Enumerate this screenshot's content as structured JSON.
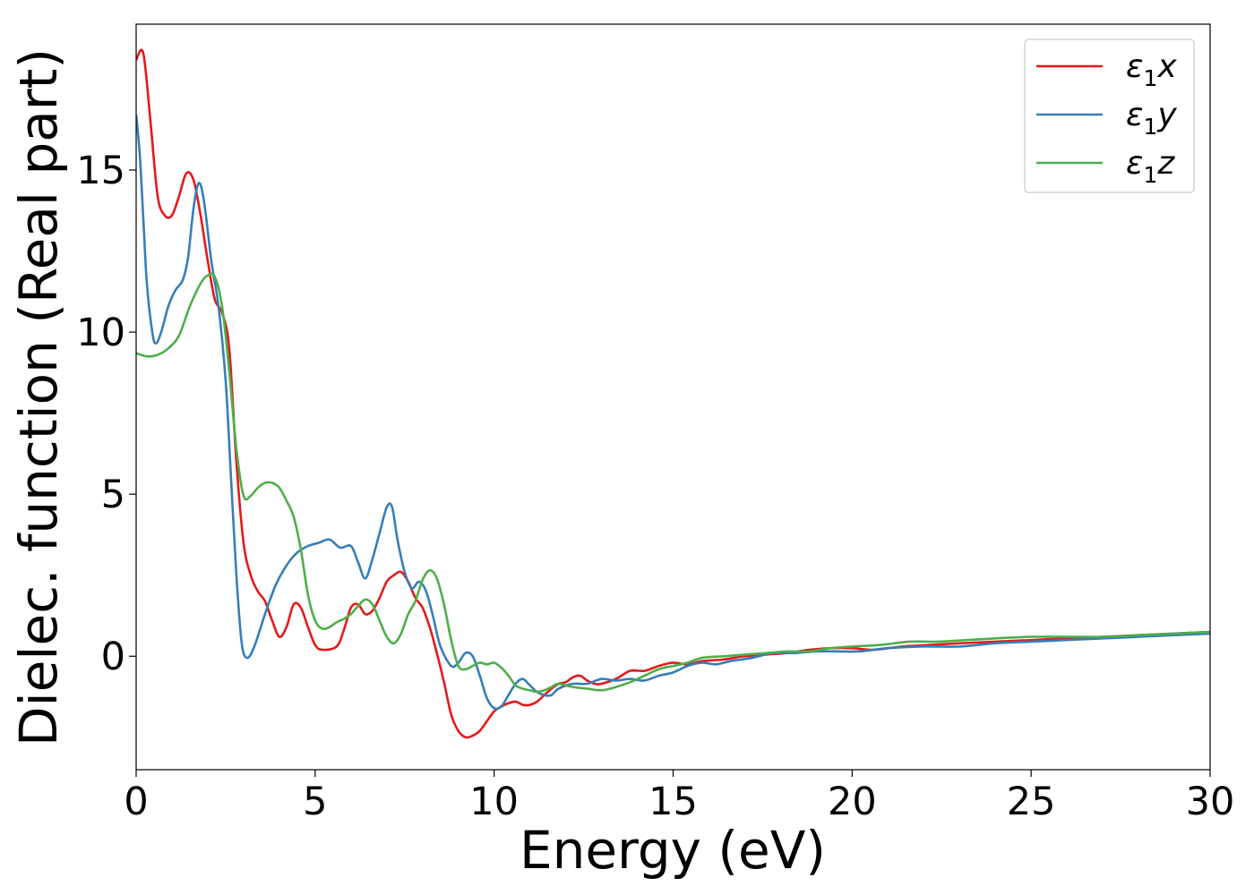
{
  "chart_data": {
    "type": "line",
    "title": "",
    "xlabel": "Energy (eV)",
    "ylabel": "Dielec. function (Real part)",
    "xlim": [
      0,
      30
    ],
    "ylim": [
      -3.5,
      19.5
    ],
    "xticks": [
      0,
      5,
      10,
      15,
      20,
      25,
      30
    ],
    "yticks": [
      0,
      5,
      10,
      15
    ],
    "grid": false,
    "legend_position": "top-right",
    "series": [
      {
        "name": "ε₁x",
        "legend_main": "ε",
        "legend_sub": "1",
        "legend_tail": "x",
        "color": "#e41a1c",
        "points": [
          [
            0,
            18.4
          ],
          [
            0.2,
            18.6
          ],
          [
            0.4,
            16.5
          ],
          [
            0.6,
            14.2
          ],
          [
            0.8,
            13.6
          ],
          [
            1.0,
            13.6
          ],
          [
            1.2,
            14.2
          ],
          [
            1.4,
            14.9
          ],
          [
            1.6,
            14.7
          ],
          [
            1.8,
            13.6
          ],
          [
            2.0,
            12.2
          ],
          [
            2.2,
            11.0
          ],
          [
            2.4,
            10.6
          ],
          [
            2.6,
            9.5
          ],
          [
            2.8,
            6.0
          ],
          [
            3.0,
            3.5
          ],
          [
            3.2,
            2.5
          ],
          [
            3.4,
            2.0
          ],
          [
            3.6,
            1.7
          ],
          [
            3.8,
            1.1
          ],
          [
            4.0,
            0.6
          ],
          [
            4.2,
            0.9
          ],
          [
            4.4,
            1.6
          ],
          [
            4.6,
            1.5
          ],
          [
            4.8,
            0.9
          ],
          [
            5.0,
            0.35
          ],
          [
            5.2,
            0.2
          ],
          [
            5.6,
            0.3
          ],
          [
            5.8,
            0.8
          ],
          [
            6.0,
            1.5
          ],
          [
            6.2,
            1.6
          ],
          [
            6.4,
            1.3
          ],
          [
            6.6,
            1.4
          ],
          [
            6.8,
            1.8
          ],
          [
            7.0,
            2.3
          ],
          [
            7.2,
            2.5
          ],
          [
            7.4,
            2.6
          ],
          [
            7.6,
            2.3
          ],
          [
            7.8,
            1.8
          ],
          [
            8.0,
            1.5
          ],
          [
            8.2,
            0.9
          ],
          [
            8.4,
            0.1
          ],
          [
            8.6,
            -0.8
          ],
          [
            8.8,
            -1.8
          ],
          [
            9.0,
            -2.3
          ],
          [
            9.2,
            -2.5
          ],
          [
            9.4,
            -2.45
          ],
          [
            9.6,
            -2.3
          ],
          [
            9.8,
            -2.0
          ],
          [
            10.0,
            -1.7
          ],
          [
            10.2,
            -1.55
          ],
          [
            10.4,
            -1.45
          ],
          [
            10.6,
            -1.4
          ],
          [
            10.8,
            -1.5
          ],
          [
            11.0,
            -1.5
          ],
          [
            11.2,
            -1.4
          ],
          [
            11.4,
            -1.2
          ],
          [
            11.6,
            -1.0
          ],
          [
            11.8,
            -0.85
          ],
          [
            12.0,
            -0.8
          ],
          [
            12.2,
            -0.65
          ],
          [
            12.4,
            -0.6
          ],
          [
            12.6,
            -0.75
          ],
          [
            12.8,
            -0.85
          ],
          [
            13.0,
            -0.85
          ],
          [
            13.4,
            -0.7
          ],
          [
            13.8,
            -0.45
          ],
          [
            14.2,
            -0.45
          ],
          [
            14.6,
            -0.3
          ],
          [
            15.0,
            -0.2
          ],
          [
            15.4,
            -0.25
          ],
          [
            15.8,
            -0.15
          ],
          [
            16.4,
            -0.1
          ],
          [
            17.0,
            0.0
          ],
          [
            17.6,
            0.05
          ],
          [
            18.2,
            0.1
          ],
          [
            18.8,
            0.2
          ],
          [
            19.4,
            0.25
          ],
          [
            20.0,
            0.25
          ],
          [
            20.6,
            0.2
          ],
          [
            21.4,
            0.3
          ],
          [
            22.2,
            0.35
          ],
          [
            23.0,
            0.4
          ],
          [
            24.0,
            0.45
          ],
          [
            25.0,
            0.5
          ],
          [
            26.0,
            0.55
          ],
          [
            27.0,
            0.6
          ],
          [
            28.0,
            0.65
          ],
          [
            29.0,
            0.7
          ],
          [
            30.0,
            0.75
          ]
        ]
      },
      {
        "name": "ε₁y",
        "legend_main": "ε",
        "legend_sub": "1",
        "legend_tail": "y",
        "color": "#377eb8",
        "points": [
          [
            0,
            16.7
          ],
          [
            0.1,
            15.5
          ],
          [
            0.2,
            13.5
          ],
          [
            0.3,
            11.5
          ],
          [
            0.45,
            10.0
          ],
          [
            0.55,
            9.65
          ],
          [
            0.7,
            10.0
          ],
          [
            0.9,
            10.8
          ],
          [
            1.1,
            11.3
          ],
          [
            1.3,
            11.6
          ],
          [
            1.45,
            12.3
          ],
          [
            1.6,
            13.8
          ],
          [
            1.75,
            14.6
          ],
          [
            1.9,
            14.0
          ],
          [
            2.1,
            12.2
          ],
          [
            2.3,
            10.8
          ],
          [
            2.5,
            8.5
          ],
          [
            2.65,
            5.5
          ],
          [
            2.8,
            2.5
          ],
          [
            2.95,
            0.4
          ],
          [
            3.1,
            -0.05
          ],
          [
            3.3,
            0.3
          ],
          [
            3.6,
            1.3
          ],
          [
            3.9,
            2.2
          ],
          [
            4.2,
            2.8
          ],
          [
            4.5,
            3.2
          ],
          [
            4.8,
            3.4
          ],
          [
            5.1,
            3.5
          ],
          [
            5.4,
            3.6
          ],
          [
            5.7,
            3.35
          ],
          [
            6.0,
            3.4
          ],
          [
            6.2,
            2.9
          ],
          [
            6.4,
            2.4
          ],
          [
            6.6,
            3.0
          ],
          [
            6.8,
            3.8
          ],
          [
            7.0,
            4.6
          ],
          [
            7.15,
            4.6
          ],
          [
            7.3,
            3.6
          ],
          [
            7.5,
            2.6
          ],
          [
            7.7,
            2.1
          ],
          [
            7.9,
            2.3
          ],
          [
            8.1,
            2.0
          ],
          [
            8.3,
            1.2
          ],
          [
            8.5,
            0.3
          ],
          [
            8.8,
            -0.3
          ],
          [
            9.0,
            -0.2
          ],
          [
            9.2,
            0.1
          ],
          [
            9.4,
            0.0
          ],
          [
            9.6,
            -0.6
          ],
          [
            9.8,
            -1.3
          ],
          [
            10.0,
            -1.6
          ],
          [
            10.2,
            -1.55
          ],
          [
            10.4,
            -1.2
          ],
          [
            10.6,
            -0.85
          ],
          [
            10.8,
            -0.7
          ],
          [
            11.0,
            -0.9
          ],
          [
            11.2,
            -1.1
          ],
          [
            11.4,
            -1.2
          ],
          [
            11.6,
            -1.2
          ],
          [
            11.8,
            -1.0
          ],
          [
            12.2,
            -0.85
          ],
          [
            12.6,
            -0.85
          ],
          [
            13.0,
            -0.7
          ],
          [
            13.4,
            -0.75
          ],
          [
            13.8,
            -0.7
          ],
          [
            14.2,
            -0.75
          ],
          [
            14.6,
            -0.6
          ],
          [
            15.0,
            -0.5
          ],
          [
            15.4,
            -0.3
          ],
          [
            15.8,
            -0.2
          ],
          [
            16.2,
            -0.25
          ],
          [
            16.6,
            -0.15
          ],
          [
            17.2,
            -0.05
          ],
          [
            17.8,
            0.1
          ],
          [
            18.4,
            0.1
          ],
          [
            19.0,
            0.15
          ],
          [
            19.6,
            0.15
          ],
          [
            20.2,
            0.15
          ],
          [
            21.0,
            0.25
          ],
          [
            22.0,
            0.3
          ],
          [
            23.0,
            0.3
          ],
          [
            24.0,
            0.4
          ],
          [
            25.0,
            0.45
          ],
          [
            26.0,
            0.5
          ],
          [
            27.0,
            0.55
          ],
          [
            28.0,
            0.6
          ],
          [
            29.0,
            0.65
          ],
          [
            30.0,
            0.7
          ]
        ]
      },
      {
        "name": "ε₁z",
        "legend_main": "ε",
        "legend_sub": "1",
        "legend_tail": "z",
        "color": "#4daf4a",
        "points": [
          [
            0,
            9.35
          ],
          [
            0.3,
            9.25
          ],
          [
            0.6,
            9.3
          ],
          [
            0.9,
            9.5
          ],
          [
            1.2,
            9.9
          ],
          [
            1.5,
            10.8
          ],
          [
            1.8,
            11.5
          ],
          [
            2.0,
            11.75
          ],
          [
            2.2,
            11.7
          ],
          [
            2.4,
            10.8
          ],
          [
            2.6,
            8.8
          ],
          [
            2.8,
            6.4
          ],
          [
            3.0,
            4.95
          ],
          [
            3.2,
            4.95
          ],
          [
            3.4,
            5.2
          ],
          [
            3.6,
            5.35
          ],
          [
            3.8,
            5.35
          ],
          [
            4.0,
            5.2
          ],
          [
            4.2,
            4.8
          ],
          [
            4.4,
            4.3
          ],
          [
            4.6,
            3.3
          ],
          [
            4.8,
            1.9
          ],
          [
            5.0,
            1.1
          ],
          [
            5.2,
            0.85
          ],
          [
            5.4,
            0.9
          ],
          [
            5.6,
            1.05
          ],
          [
            5.8,
            1.15
          ],
          [
            6.0,
            1.3
          ],
          [
            6.2,
            1.55
          ],
          [
            6.4,
            1.75
          ],
          [
            6.6,
            1.6
          ],
          [
            6.8,
            1.1
          ],
          [
            7.0,
            0.6
          ],
          [
            7.2,
            0.4
          ],
          [
            7.4,
            0.7
          ],
          [
            7.6,
            1.3
          ],
          [
            7.8,
            1.7
          ],
          [
            8.0,
            2.35
          ],
          [
            8.2,
            2.65
          ],
          [
            8.4,
            2.4
          ],
          [
            8.6,
            1.6
          ],
          [
            8.8,
            0.5
          ],
          [
            9.0,
            -0.3
          ],
          [
            9.2,
            -0.4
          ],
          [
            9.4,
            -0.3
          ],
          [
            9.6,
            -0.2
          ],
          [
            9.8,
            -0.25
          ],
          [
            10.0,
            -0.2
          ],
          [
            10.2,
            -0.35
          ],
          [
            10.4,
            -0.6
          ],
          [
            10.6,
            -0.9
          ],
          [
            10.8,
            -1.0
          ],
          [
            11.0,
            -1.05
          ],
          [
            11.2,
            -1.1
          ],
          [
            11.4,
            -1.05
          ],
          [
            11.6,
            -0.95
          ],
          [
            11.8,
            -0.85
          ],
          [
            12.2,
            -0.95
          ],
          [
            12.6,
            -1.0
          ],
          [
            13.0,
            -1.05
          ],
          [
            13.4,
            -0.95
          ],
          [
            13.8,
            -0.8
          ],
          [
            14.2,
            -0.6
          ],
          [
            14.6,
            -0.4
          ],
          [
            15.0,
            -0.3
          ],
          [
            15.4,
            -0.2
          ],
          [
            15.8,
            -0.05
          ],
          [
            16.4,
            0.0
          ],
          [
            17.0,
            0.05
          ],
          [
            17.6,
            0.1
          ],
          [
            18.2,
            0.15
          ],
          [
            18.8,
            0.15
          ],
          [
            19.4,
            0.25
          ],
          [
            20.0,
            0.3
          ],
          [
            20.8,
            0.35
          ],
          [
            21.6,
            0.45
          ],
          [
            22.4,
            0.45
          ],
          [
            23.2,
            0.5
          ],
          [
            24.0,
            0.55
          ],
          [
            25.0,
            0.6
          ],
          [
            26.0,
            0.6
          ],
          [
            27.0,
            0.6
          ],
          [
            28.0,
            0.65
          ],
          [
            29.0,
            0.7
          ],
          [
            30.0,
            0.75
          ]
        ]
      }
    ]
  }
}
